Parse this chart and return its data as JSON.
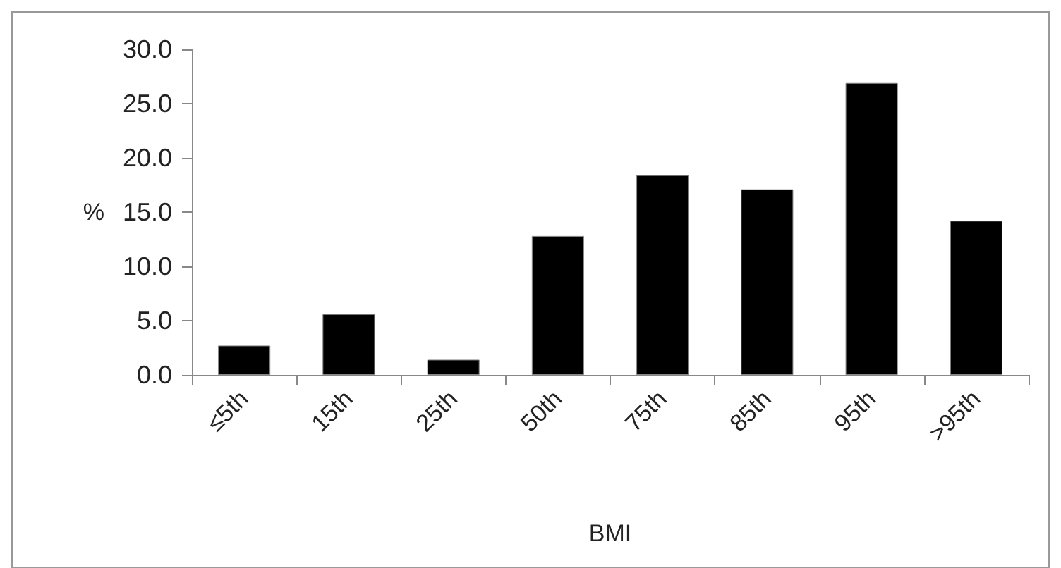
{
  "chart_data": {
    "type": "bar",
    "categories": [
      "≤5th",
      "15th",
      "25th",
      "50th",
      "75th",
      "85th",
      "95th",
      ">95th"
    ],
    "values": [
      2.7,
      5.6,
      1.4,
      12.8,
      18.4,
      17.1,
      26.9,
      14.2
    ],
    "color": "#000000",
    "xlabel": "BMI",
    "ylabel": "%",
    "ylim": [
      0,
      30
    ],
    "yticks": [
      {
        "value": 0,
        "label": "0.0"
      },
      {
        "value": 5,
        "label": "5.0"
      },
      {
        "value": 10,
        "label": "10.0"
      },
      {
        "value": 15,
        "label": "15.0"
      },
      {
        "value": 20,
        "label": "20.0"
      },
      {
        "value": 25,
        "label": "25.0"
      },
      {
        "value": 30,
        "label": "30.0"
      }
    ],
    "grid": false
  }
}
